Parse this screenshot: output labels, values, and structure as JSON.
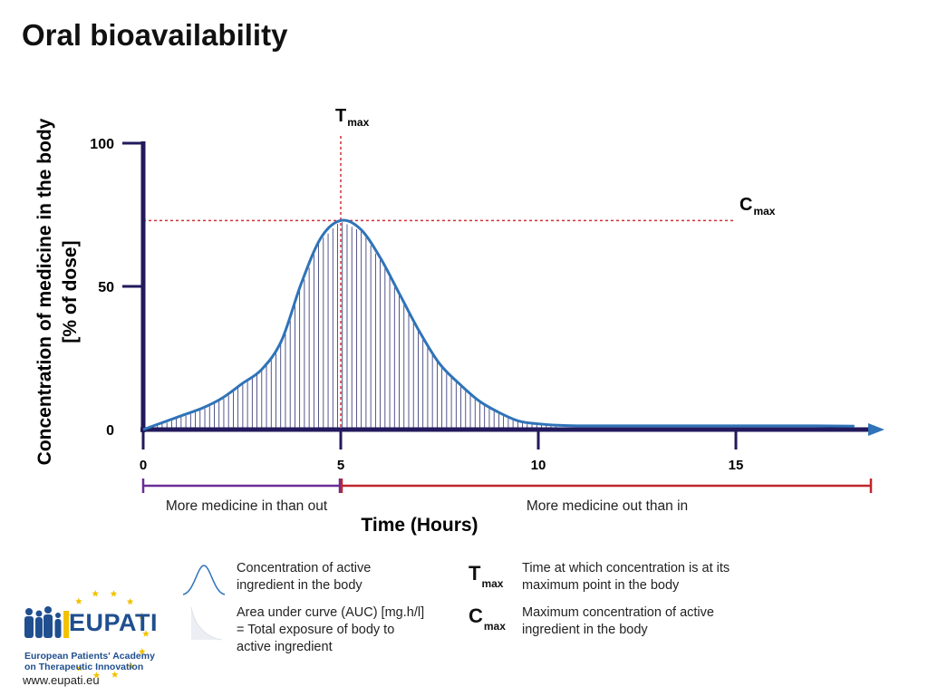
{
  "page": {
    "title": "Oral bioavailability"
  },
  "chart_data": {
    "type": "area",
    "xlabel": "Time (Hours)",
    "ylabel_line1": "Concentration of medicine in the body",
    "ylabel_line2": "[% of dose]",
    "xlim": [
      0,
      18
    ],
    "ylim": [
      0,
      100
    ],
    "x_ticks": [
      0,
      5,
      10,
      15
    ],
    "y_ticks": [
      0,
      50,
      100
    ],
    "series": [
      {
        "x": [
          0,
          0.5,
          1,
          1.5,
          2,
          2.5,
          3,
          3.5,
          4,
          4.5,
          5,
          5.5,
          6,
          6.5,
          7,
          7.5,
          8,
          8.5,
          9,
          9.5,
          10,
          10.5,
          11,
          12,
          13,
          14,
          15,
          16,
          17,
          18
        ],
        "y": [
          0,
          2.5,
          5,
          7.5,
          11,
          16,
          21,
          31,
          51,
          67,
          73,
          70,
          60,
          47,
          34,
          23,
          16,
          10,
          6,
          3,
          2,
          1.5,
          1.3,
          1.3,
          1.3,
          1.3,
          1.3,
          1.3,
          1.3,
          1.2
        ]
      }
    ],
    "tmax": {
      "x": 5,
      "label": "T",
      "sub": "max"
    },
    "cmax": {
      "y": 73,
      "label": "C",
      "sub": "max"
    },
    "ranges": [
      {
        "from": 0,
        "to": 5,
        "label": "More medicine in than out",
        "color": "#6a2c96"
      },
      {
        "from": 5,
        "to": 18.3,
        "label": "More medicine out than in",
        "color": "#c0272d"
      }
    ],
    "colors": {
      "axis": "#221a5c",
      "curve": "#2f73b8",
      "hatch": "#2a2f6e",
      "guide": "#d0303a"
    }
  },
  "legend": {
    "curve_text": "Concentration of active ingredient in the body",
    "auc_text": "Area under curve (AUC) [mg.h/l] = Total exposure of body to active ingredient",
    "tmax_symbol": "T",
    "tmax_sub": "max",
    "tmax_text": "Time at which concentration is at its maximum point in the body",
    "cmax_symbol": "C",
    "cmax_sub": "max",
    "cmax_text": "Maximum concentration of active ingredient in the body"
  },
  "logo": {
    "name": "EUPATI",
    "line1": "European Patients' Academy",
    "line2": "on Therapeutic Innovation",
    "url": "www.eupati.eu",
    "color": "#1f4f8f",
    "star_color": "#f2c200"
  }
}
